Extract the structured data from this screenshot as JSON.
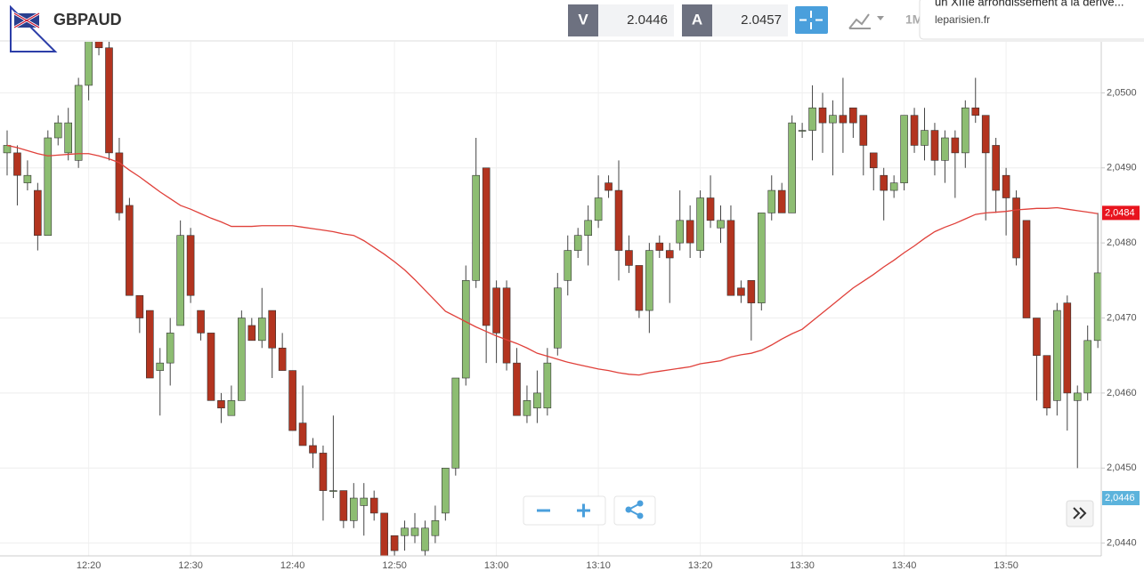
{
  "header": {
    "symbol": "GBPAUD",
    "bid_label": "V",
    "bid": "2.0446",
    "ask_label": "A",
    "ask": "2.0457",
    "timeframe": "1M"
  },
  "notification": {
    "headline": "un XIIIe arrondissement à la dérive...",
    "source": "leparisien.fr"
  },
  "chart_data": {
    "type": "candlestick",
    "categories": [
      null,
      null,
      null,
      null,
      null,
      null,
      null,
      null,
      "12:20",
      null,
      null,
      null,
      null,
      null,
      null,
      null,
      null,
      null,
      "12:30",
      null,
      null,
      null,
      null,
      null,
      null,
      null,
      null,
      null,
      "12:40",
      null,
      null,
      null,
      null,
      null,
      null,
      null,
      null,
      null,
      "12:50",
      null,
      null,
      null,
      null,
      null,
      null,
      null,
      null,
      null,
      "13:00",
      null,
      null,
      null,
      null,
      null,
      null,
      null,
      null,
      null,
      "13:10",
      null,
      null,
      null,
      null,
      null,
      null,
      null,
      null,
      null,
      "13:20",
      null,
      null,
      null,
      null,
      null,
      null,
      null,
      null,
      null,
      "13:30",
      null,
      null,
      null,
      null,
      null,
      null,
      null,
      null,
      null,
      "13:40",
      null,
      null,
      null,
      null,
      null,
      null,
      null,
      null,
      null,
      "13:50",
      null,
      null,
      null,
      null,
      null,
      null,
      null,
      null,
      null
    ],
    "open": [
      2.0492,
      2.0492,
      2.0488,
      2.0487,
      2.0481,
      2.0494,
      2.0492,
      2.0491,
      2.0501,
      2.0507,
      2.0506,
      2.0492,
      2.0485,
      2.0473,
      2.0471,
      2.0463,
      2.0464,
      2.0469,
      2.0481,
      2.0471,
      2.0468,
      2.0459,
      2.0457,
      2.0459,
      2.0469,
      2.0467,
      2.0471,
      2.0466,
      2.0463,
      2.0456,
      2.0453,
      2.0452,
      2.0447,
      2.0447,
      2.0443,
      2.0445,
      2.0446,
      2.0444,
      2.0441,
      2.0441,
      2.0441,
      2.0439,
      2.0441,
      2.0444,
      2.045,
      2.0462,
      2.0475,
      2.049,
      2.0474,
      2.0474,
      2.0464,
      2.0457,
      2.0458,
      2.0458,
      2.0466,
      2.0475,
      2.0479,
      2.0481,
      2.0483,
      2.0488,
      2.0487,
      2.0479,
      2.0477,
      2.0471,
      2.048,
      2.0479,
      2.048,
      2.0483,
      2.0479,
      2.0486,
      2.0482,
      2.0483,
      2.0474,
      2.0475,
      2.0472,
      2.0484,
      2.0487,
      2.0484,
      2.0495,
      2.0495,
      2.0498,
      2.0496,
      2.0497,
      2.0498,
      2.0497,
      2.0492,
      2.0489,
      2.0487,
      2.0488,
      2.0497,
      2.0493,
      2.0495,
      2.0491,
      2.0494,
      2.0492,
      2.0498,
      2.0497,
      2.0493,
      2.0489,
      2.0486,
      2.0483,
      2.047,
      2.0465,
      2.0459,
      2.0472,
      2.0459,
      2.046,
      2.0467
    ],
    "high": [
      2.0495,
      2.0493,
      2.0491,
      2.0488,
      2.0495,
      2.0497,
      2.0498,
      2.0502,
      2.0508,
      2.0508,
      2.0507,
      2.0494,
      2.0486,
      2.0473,
      2.0471,
      2.0466,
      2.047,
      2.0483,
      2.0482,
      2.0471,
      2.0468,
      2.046,
      2.0461,
      2.0471,
      2.047,
      2.0474,
      2.0471,
      2.0468,
      2.0463,
      2.0461,
      2.0454,
      2.0453,
      2.0457,
      2.0447,
      2.0448,
      2.0448,
      2.0447,
      2.0444,
      2.0441,
      2.0443,
      2.0444,
      2.0443,
      2.0445,
      2.045,
      2.0462,
      2.0477,
      2.0494,
      2.049,
      2.0475,
      2.0475,
      2.0466,
      2.0461,
      2.0463,
      2.0466,
      2.0476,
      2.0481,
      2.0482,
      2.0485,
      2.0489,
      2.0489,
      2.0491,
      2.0481,
      2.0477,
      2.048,
      2.0481,
      2.048,
      2.0487,
      2.0485,
      2.0487,
      2.0489,
      2.0485,
      2.0485,
      2.0475,
      2.0475,
      2.0484,
      2.0489,
      2.0488,
      2.0497,
      2.0496,
      2.0501,
      2.05,
      2.0499,
      2.0502,
      2.0498,
      2.0497,
      2.0492,
      2.049,
      2.0489,
      2.0497,
      2.0498,
      2.0498,
      2.0496,
      2.0495,
      2.0495,
      2.0499,
      2.0502,
      2.0497,
      2.0494,
      2.049,
      2.0487,
      2.0483,
      2.047,
      2.0465,
      2.0472,
      2.0473,
      2.0461,
      2.0469,
      2.0484
    ],
    "low": [
      2.0489,
      2.0485,
      2.0487,
      2.0479,
      2.0481,
      2.0493,
      2.0491,
      2.049,
      2.0499,
      2.0505,
      2.0491,
      2.0483,
      2.0473,
      2.0468,
      2.0462,
      2.0457,
      2.0461,
      2.0469,
      2.0472,
      2.0467,
      2.0459,
      2.0456,
      2.0457,
      2.0459,
      2.0467,
      2.0466,
      2.0462,
      2.0463,
      2.0455,
      2.0453,
      2.045,
      2.0443,
      2.0446,
      2.0442,
      2.0442,
      2.0441,
      2.0443,
      2.0437,
      2.0438,
      2.0439,
      2.044,
      2.0438,
      2.044,
      2.0443,
      2.0449,
      2.0461,
      2.0474,
      2.0464,
      2.0464,
      2.0463,
      2.0457,
      2.0456,
      2.0456,
      2.0457,
      2.0465,
      2.0473,
      2.0478,
      2.0477,
      2.0482,
      2.0486,
      2.0475,
      2.0476,
      2.047,
      2.0468,
      2.0478,
      2.0472,
      2.0479,
      2.0478,
      2.0478,
      2.0482,
      2.048,
      2.0473,
      2.0472,
      2.0467,
      2.0471,
      2.0483,
      2.0484,
      2.0484,
      2.0494,
      2.0491,
      2.0492,
      2.0489,
      2.0492,
      2.0494,
      2.0489,
      2.0487,
      2.0483,
      2.0486,
      2.0487,
      2.0492,
      2.0491,
      2.0489,
      2.0488,
      2.0486,
      2.049,
      2.0496,
      2.0483,
      2.0484,
      2.0481,
      2.0477,
      2.047,
      2.0459,
      2.0457,
      2.0457,
      2.0455,
      2.045,
      2.0459,
      2.0466
    ],
    "close": [
      2.0493,
      2.0489,
      2.0489,
      2.0481,
      2.0494,
      2.0496,
      2.0496,
      2.0501,
      2.0507,
      2.0506,
      2.0492,
      2.0484,
      2.0473,
      2.047,
      2.0462,
      2.0464,
      2.0468,
      2.0481,
      2.0473,
      2.0468,
      2.0459,
      2.0458,
      2.0459,
      2.047,
      2.0467,
      2.047,
      2.0466,
      2.0463,
      2.0455,
      2.0453,
      2.0452,
      2.0447,
      2.0447,
      2.0443,
      2.0446,
      2.0446,
      2.0444,
      2.0438,
      2.0439,
      2.0442,
      2.0442,
      2.0442,
      2.0443,
      2.045,
      2.0462,
      2.0475,
      2.0489,
      2.0469,
      2.0468,
      2.0464,
      2.0457,
      2.0459,
      2.046,
      2.0464,
      2.0474,
      2.0479,
      2.0481,
      2.0483,
      2.0486,
      2.0487,
      2.0479,
      2.0477,
      2.0471,
      2.0479,
      2.0479,
      2.0478,
      2.0483,
      2.048,
      2.0486,
      2.0483,
      2.0483,
      2.0473,
      2.0473,
      2.0472,
      2.0484,
      2.0487,
      2.0484,
      2.0496,
      2.0495,
      2.0498,
      2.0496,
      2.0497,
      2.0496,
      2.0496,
      2.0493,
      2.049,
      2.0487,
      2.0488,
      2.0497,
      2.0493,
      2.0495,
      2.0491,
      2.0494,
      2.0492,
      2.0498,
      2.0497,
      2.0492,
      2.0487,
      2.0486,
      2.0478,
      2.047,
      2.0465,
      2.0458,
      2.0471,
      2.046,
      2.046,
      2.0467,
      2.0476
    ],
    "up_color": "#8dbd72",
    "down_color": "#b3341f",
    "overlay": {
      "type": "line",
      "color": "#e0403a",
      "values": [
        2.0493,
        2.04927,
        2.04923,
        2.04919,
        2.04916,
        2.04917,
        2.04918,
        2.04919,
        2.04919,
        2.04916,
        2.04912,
        2.04907,
        2.04897,
        2.04888,
        2.04878,
        2.04868,
        2.04859,
        2.0485,
        2.04845,
        2.04839,
        2.04833,
        2.04828,
        2.04822,
        2.04822,
        2.04822,
        2.04823,
        2.04823,
        2.04823,
        2.04823,
        2.04821,
        2.04819,
        2.04817,
        2.04815,
        2.04812,
        2.0481,
        2.04803,
        2.04794,
        2.04785,
        2.04775,
        2.04764,
        2.04751,
        2.04737,
        2.04723,
        2.04709,
        2.04702,
        2.04695,
        2.04688,
        2.04682,
        2.04676,
        2.04671,
        2.04666,
        2.0466,
        2.04653,
        2.04649,
        2.04645,
        2.04641,
        2.04638,
        2.04635,
        2.04632,
        2.0463,
        2.04627,
        2.04625,
        2.04624,
        2.04627,
        2.04629,
        2.04631,
        2.04633,
        2.04635,
        2.04639,
        2.04641,
        2.04643,
        2.04648,
        2.04651,
        2.04653,
        2.04657,
        2.04664,
        2.04672,
        2.04679,
        2.04685,
        2.04696,
        2.04707,
        2.04718,
        2.04729,
        2.0474,
        2.04749,
        2.04758,
        2.04768,
        2.04777,
        2.04787,
        2.04796,
        2.04806,
        2.04815,
        2.04821,
        2.04826,
        2.04832,
        2.04838,
        2.0484,
        2.04841,
        2.04842,
        2.04844,
        2.04845,
        2.04846,
        2.04846,
        2.04847,
        2.04845,
        2.04843,
        2.04841,
        2.04839
      ]
    },
    "ylim": [
      2.04383,
      2.05068
    ],
    "yticks": [
      {
        "value": 2.044,
        "label": "2,0440"
      },
      {
        "value": 2.045,
        "label": "2,0450"
      },
      {
        "value": 2.046,
        "label": "2,0460"
      },
      {
        "value": 2.047,
        "label": "2,0470"
      },
      {
        "value": 2.048,
        "label": "2,0480"
      },
      {
        "value": 2.049,
        "label": "2,0490"
      },
      {
        "value": 2.05,
        "label": "2,0500"
      }
    ],
    "grid": true,
    "price_labels": [
      {
        "value": 2.0484,
        "label": "2,0484",
        "color": "#e8141e"
      },
      {
        "value": 2.0446,
        "label": "2,0446",
        "color": "#5cb3dc"
      }
    ]
  }
}
